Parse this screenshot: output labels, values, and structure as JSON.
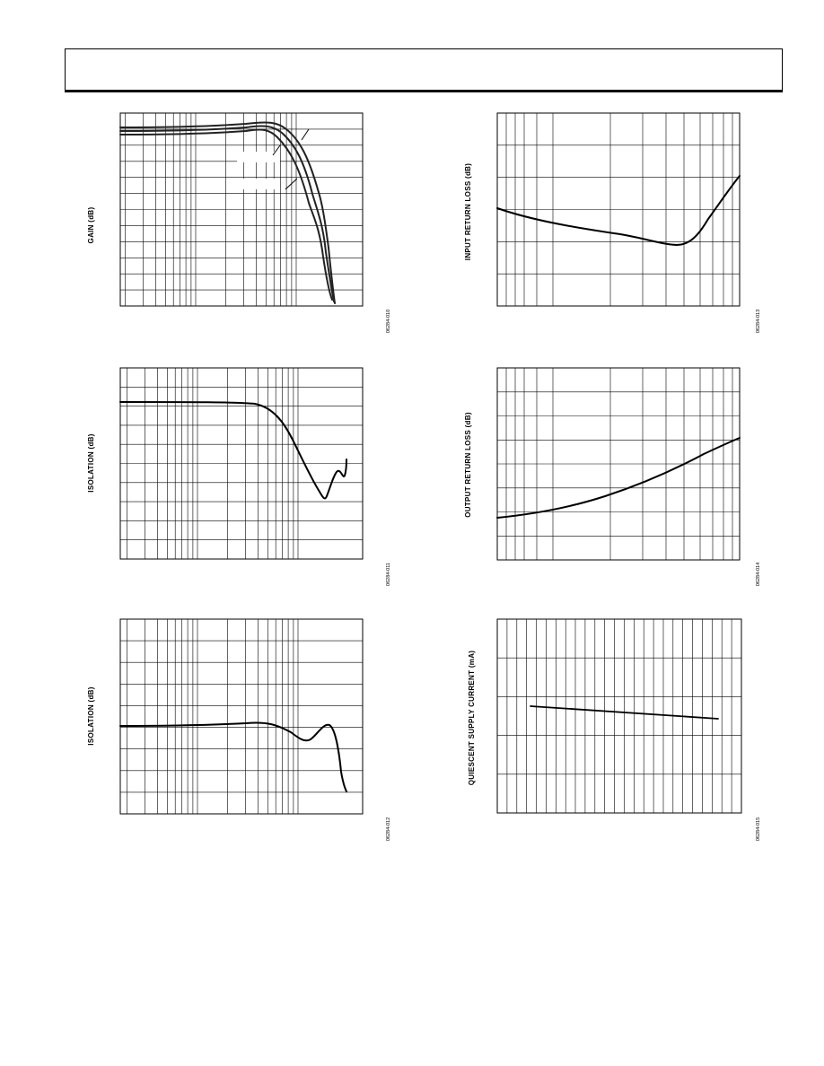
{
  "page": {
    "header": ""
  },
  "charts": [
    {
      "id": "gain",
      "ylabel": "GAIN (dB)",
      "figure_id": "06284-010",
      "x_scale": "log",
      "series_count": 3,
      "series_color": "#222222"
    },
    {
      "id": "input-return-loss",
      "ylabel": "INPUT RETURN LOSS (dB)",
      "figure_id": "06284-013",
      "x_scale": "log"
    },
    {
      "id": "isolation-1",
      "ylabel": "ISOLATION (dB)",
      "figure_id": "06284-011",
      "x_scale": "log"
    },
    {
      "id": "output-return-loss",
      "ylabel": "OUTPUT RETURN LOSS (dB)",
      "figure_id": "06284-014",
      "x_scale": "log"
    },
    {
      "id": "isolation-2",
      "ylabel": "ISOLATION (dB)",
      "figure_id": "06284-012",
      "x_scale": "log"
    },
    {
      "id": "quiescent-supply-current",
      "ylabel": "QUIESCENT SUPPLY CURRENT (mA)",
      "figure_id": "06284-015",
      "x_scale": "linear"
    }
  ]
}
